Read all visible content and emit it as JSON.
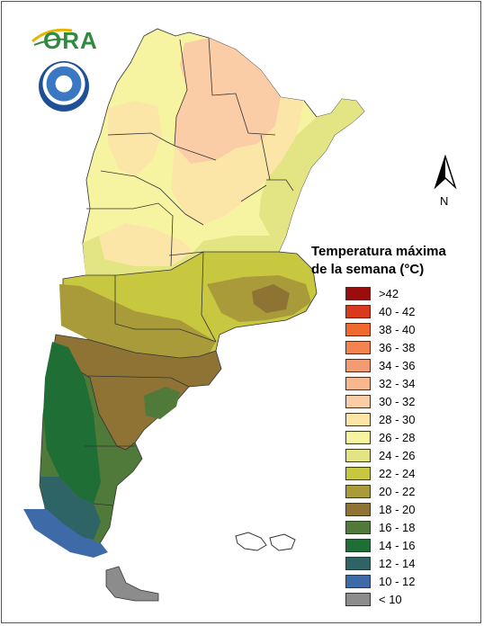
{
  "map": {
    "legend_title_line1": "Temperatura máxima",
    "legend_title_line2": "de la semana (°C)",
    "north_label": "N",
    "logo_text": "ORA",
    "legend": [
      {
        "label": ">42",
        "color": "#9b0d0d"
      },
      {
        "label": "40 - 42",
        "color": "#d9391c"
      },
      {
        "label": "38 - 40",
        "color": "#f06a30"
      },
      {
        "label": "36 - 38",
        "color": "#f3834f"
      },
      {
        "label": "34 - 36",
        "color": "#f39b73"
      },
      {
        "label": "32 - 34",
        "color": "#f8b78f"
      },
      {
        "label": "30 - 32",
        "color": "#fbcda6"
      },
      {
        "label": "28 - 30",
        "color": "#fbe6a8"
      },
      {
        "label": "26 - 28",
        "color": "#f6f4a0"
      },
      {
        "label": "24 - 26",
        "color": "#e3e585"
      },
      {
        "label": "22 - 24",
        "color": "#c8c840"
      },
      {
        "label": "20 - 22",
        "color": "#a99a3a"
      },
      {
        "label": "18 - 20",
        "color": "#8e7335"
      },
      {
        "label": "16 - 18",
        "color": "#4f7a3a"
      },
      {
        "label": "14 - 16",
        "color": "#1f6e35"
      },
      {
        "label": "12 - 14",
        "color": "#2e6466"
      },
      {
        "label": "10 - 12",
        "color": "#3e6aa8"
      },
      {
        "label": "< 10",
        "color": "#8c8c8c"
      }
    ]
  }
}
